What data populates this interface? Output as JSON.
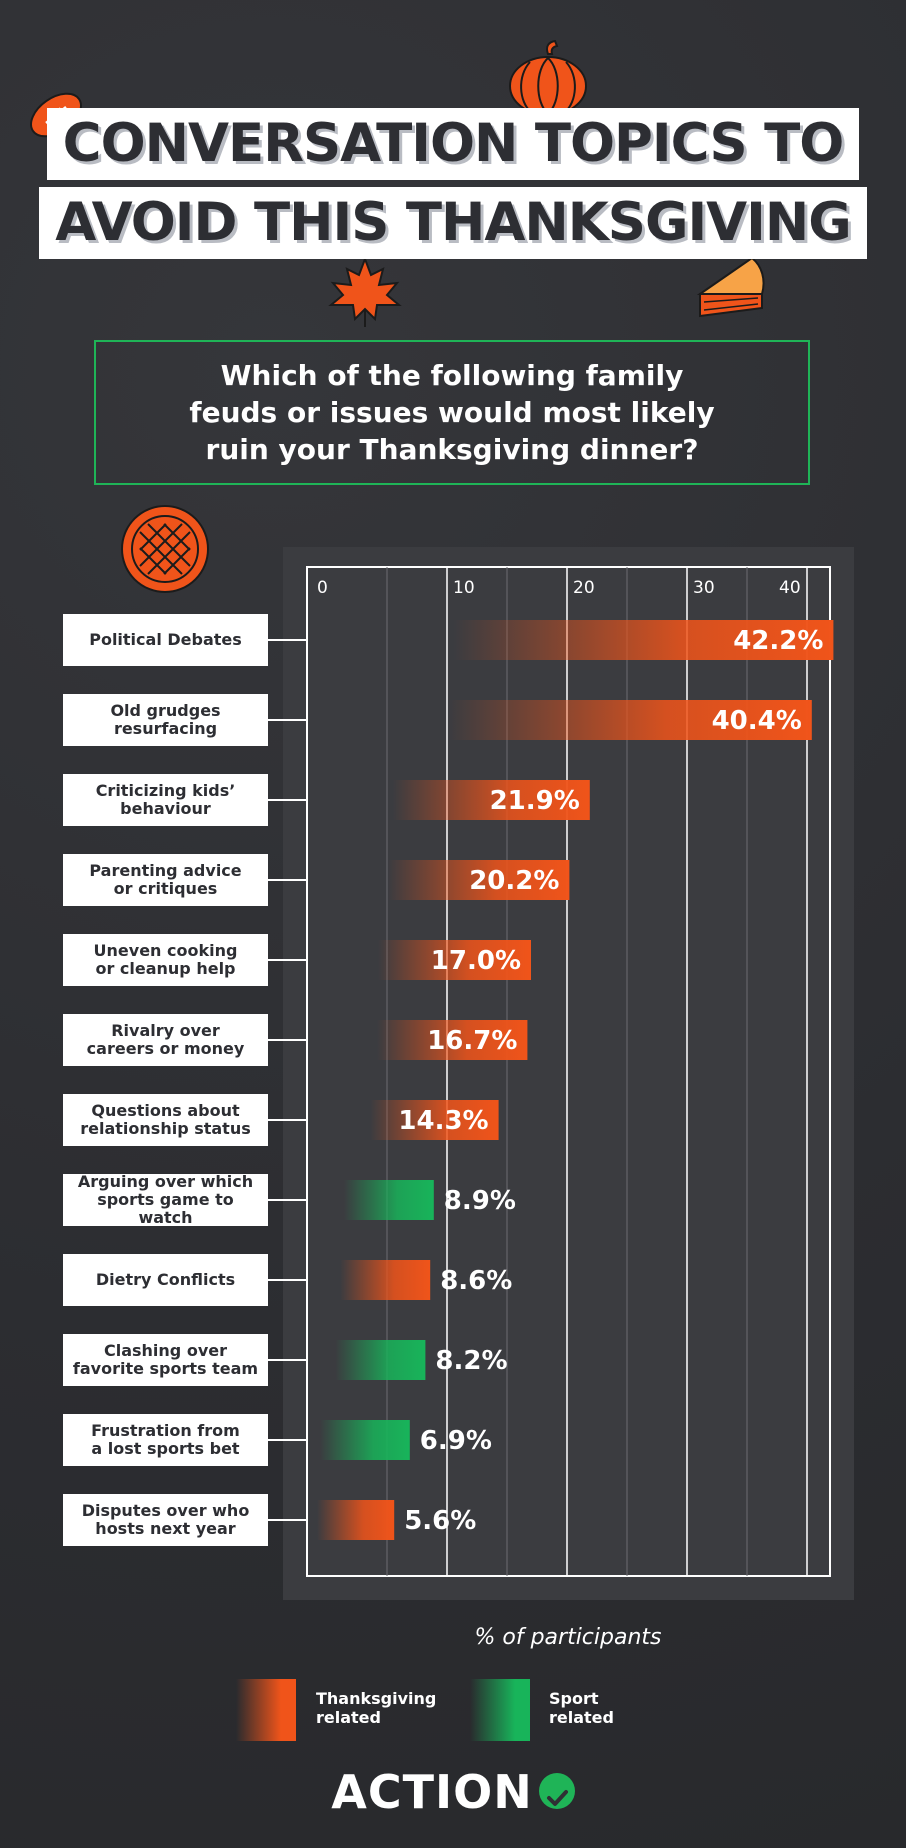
{
  "header": {
    "title_line1": "CONVERSATION TOPICS TO",
    "title_line2": "AVOID THIS THANKSGIVING"
  },
  "question": "Which of the following family feuds or issues would most likely ruin your Thanksgiving dinner?",
  "colors": {
    "thanksgiving": "#f0541a",
    "sport": "#18b45a",
    "background": "#2f3034",
    "panel": "#3b3c40",
    "frame": "#ffffff"
  },
  "chart_data": {
    "type": "bar",
    "orientation": "horizontal",
    "xlabel": "% of participants",
    "xlim": [
      0,
      40
    ],
    "xticks": [
      0,
      10,
      20,
      30,
      40
    ],
    "grid": true,
    "categories": [
      "Political Debates",
      "Old grudges resurfacing",
      "Criticizing kids’ behaviour",
      "Parenting advice or critiques",
      "Uneven cooking or cleanup help",
      "Rivalry over careers or money",
      "Questions about relationship status",
      "Arguing over which sports game to watch",
      "Dietry Conflicts",
      "Clashing over favorite sports team",
      "Frustration from a lost sports bet",
      "Disputes over who hosts next year"
    ],
    "values": [
      42.2,
      40.4,
      21.9,
      20.2,
      17.0,
      16.7,
      14.3,
      8.9,
      8.6,
      8.2,
      6.9,
      5.6
    ],
    "value_labels": [
      "42.2%",
      "40.4%",
      "21.9%",
      "20.2%",
      "17.0%",
      "16.7%",
      "14.3%",
      "8.9%",
      "8.6%",
      "8.2%",
      "6.9%",
      "5.6%"
    ],
    "groups": [
      "thanksgiving",
      "thanksgiving",
      "thanksgiving",
      "thanksgiving",
      "thanksgiving",
      "thanksgiving",
      "thanksgiving",
      "sport",
      "thanksgiving",
      "sport",
      "sport",
      "thanksgiving"
    ],
    "legend": [
      {
        "key": "thanksgiving",
        "label": "Thanksgiving related"
      },
      {
        "key": "sport",
        "label": "Sport related"
      }
    ],
    "legend_position": "bottom"
  },
  "labels_wrapped": [
    [
      "Political Debates"
    ],
    [
      "Old grudges",
      "resurfacing"
    ],
    [
      "Criticizing kids’",
      "behaviour"
    ],
    [
      "Parenting advice",
      "or critiques"
    ],
    [
      "Uneven cooking",
      "or cleanup help"
    ],
    [
      "Rivalry over",
      "careers or money"
    ],
    [
      "Questions about",
      "relationship status"
    ],
    [
      "Arguing over which",
      "sports game to watch"
    ],
    [
      "Dietry Conflicts"
    ],
    [
      "Clashing over",
      "favorite sports team"
    ],
    [
      "Frustration from",
      "a lost sports bet"
    ],
    [
      "Disputes over who",
      "hosts next year"
    ]
  ],
  "legend_text": {
    "thanksgiving_line1": "Thanksgiving",
    "thanksgiving_line2": "related",
    "sport_line1": "Sport",
    "sport_line2": "related"
  },
  "brand": "ACTION",
  "icons": [
    "football-icon",
    "pumpkin-icon",
    "maple-leaf-icon",
    "pie-slice-icon",
    "lattice-pie-icon",
    "check-circle-icon"
  ]
}
